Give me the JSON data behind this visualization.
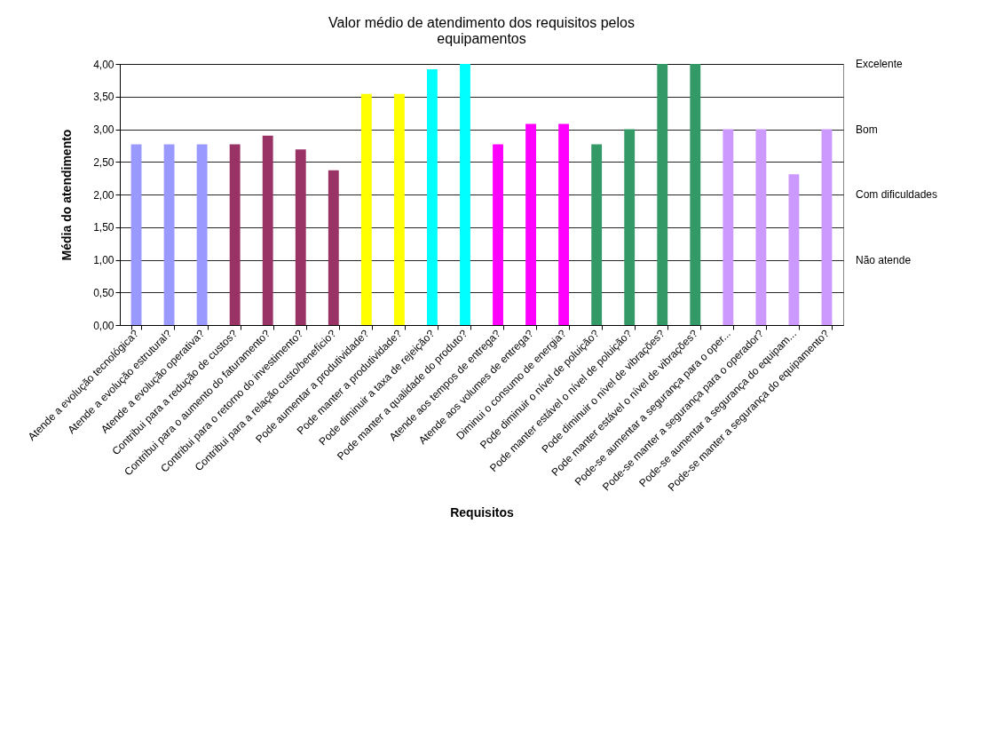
{
  "chart_data": {
    "type": "bar",
    "title": "Valor médio de atendimento dos requisitos pelos equipamentos",
    "xlabel": "Requisitos",
    "ylabel": "Média do atendimento",
    "categories": [
      "Atende a evolução tecnológica?",
      "Atende a evolução estrutural?",
      "Atende a evolução operativa?",
      "Contribui para a redução de custos?",
      "Contribui para o aumento do faturamento?",
      "Contribui para o retorno do investimento?",
      "Contribui para a relação custo/benefício?",
      "Pode aumentar a produtividade?",
      "Pode manter a produtividade?",
      "Pode diminuir a taxa de rejeição?",
      "Pode manter a qualidade do produto?",
      "Atende aos tempos de entrega?",
      "Atende aos volumes de entrega?",
      "Diminui o consumo de energia?",
      "Pode diminuir o nível de poluição?",
      "Pode manter estável o nível de poluição?",
      "Pode diminuir o nível de vibrações?",
      "Pode manter estável o nível de vibrações?",
      "Pode-se aumentar a segurança para o oper...",
      "Pode-se manter a segurança para o operador?",
      "Pode-se aumentar a segurança do equipam...",
      "Pode-se manter a segurança do equipamento?"
    ],
    "values": [
      2.77,
      2.77,
      2.77,
      2.77,
      2.9,
      2.69,
      2.37,
      3.54,
      3.54,
      3.92,
      4.0,
      2.77,
      3.08,
      3.08,
      2.77,
      3.0,
      4.0,
      4.0,
      3.0,
      3.0,
      2.31,
      3.0
    ],
    "colors": [
      "#9999ff",
      "#9999ff",
      "#9999ff",
      "#993366",
      "#993366",
      "#993366",
      "#993366",
      "#ffff00",
      "#ffff00",
      "#00ffff",
      "#00ffff",
      "#ff00ff",
      "#ff00ff",
      "#ff00ff",
      "#339966",
      "#339966",
      "#339966",
      "#339966",
      "#cc99ff",
      "#cc99ff",
      "#cc99ff",
      "#cc99ff"
    ],
    "ylim": [
      0,
      4
    ],
    "yticks": [
      {
        "value": 0,
        "label": "0,00"
      },
      {
        "value": 0.5,
        "label": "0,50"
      },
      {
        "value": 1,
        "label": "1,00"
      },
      {
        "value": 1.5,
        "label": "1,50"
      },
      {
        "value": 2,
        "label": "2,00"
      },
      {
        "value": 2.5,
        "label": "2,50"
      },
      {
        "value": 3,
        "label": "3,00"
      },
      {
        "value": 3.5,
        "label": "3,50"
      },
      {
        "value": 4,
        "label": "4,00"
      }
    ],
    "annotations": [
      "Excelente",
      "Bom",
      "Com dificuldades",
      "Não atende"
    ],
    "grid": "y"
  }
}
